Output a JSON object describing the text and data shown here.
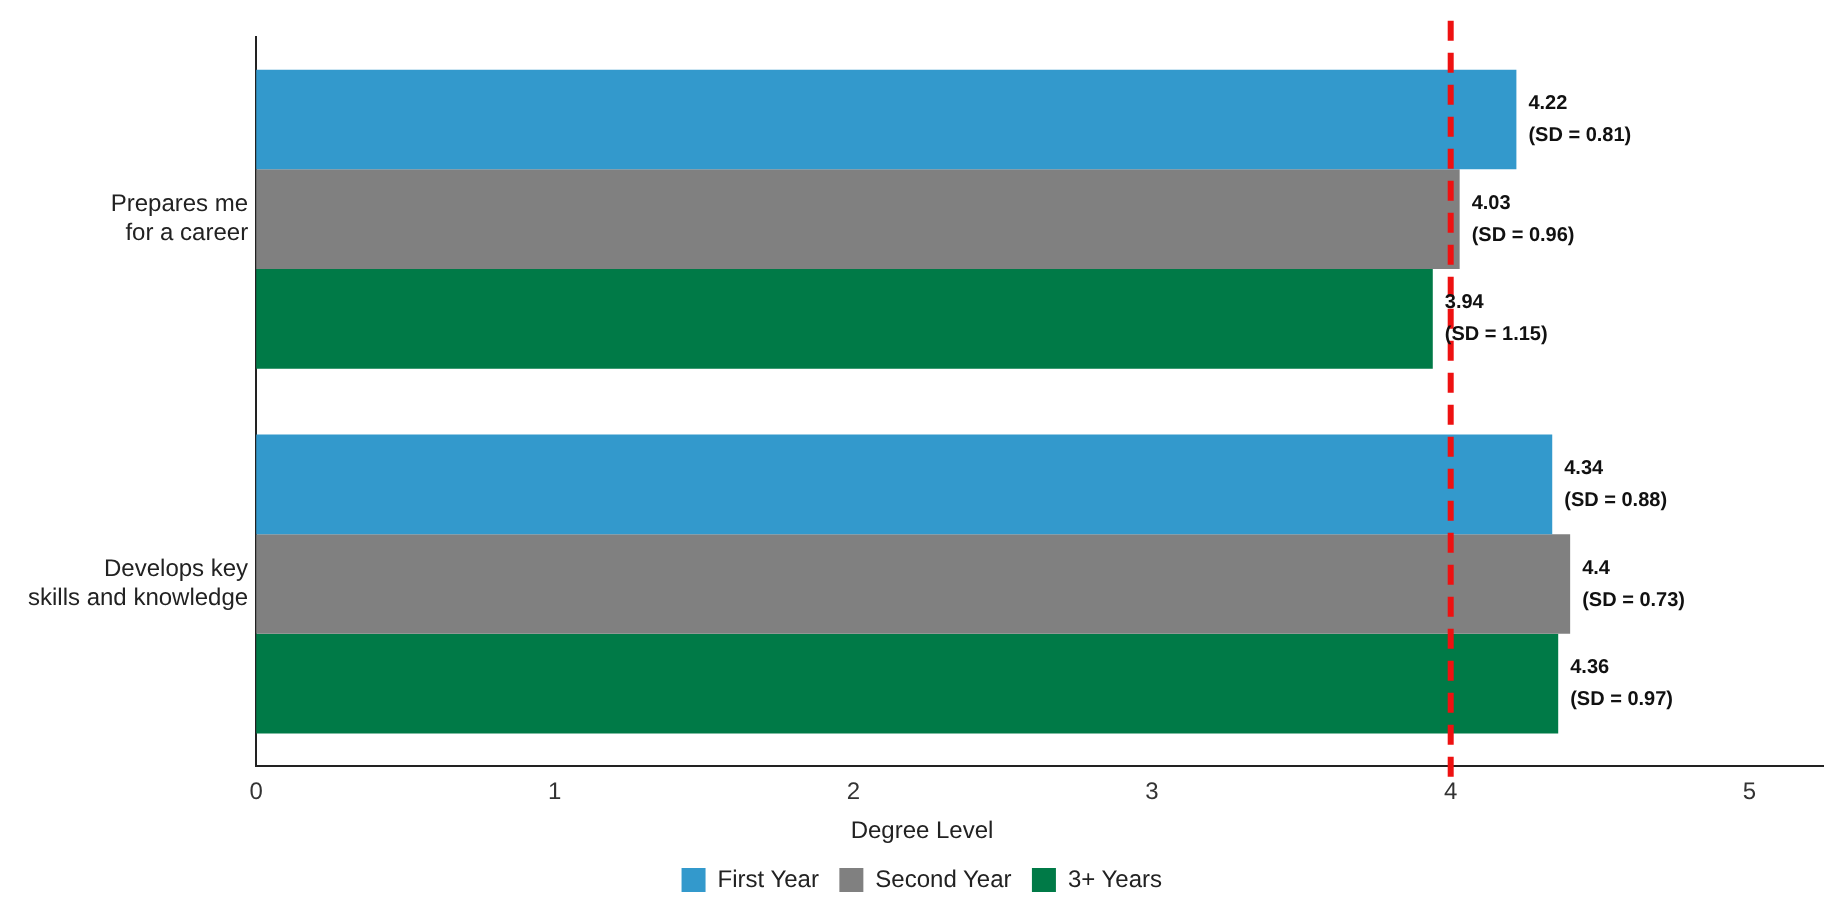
{
  "chart_data": {
    "type": "bar",
    "orientation": "horizontal",
    "categories": [
      "Prepares me\nfor a career",
      "Develops key\nskills and knowledge"
    ],
    "legend_title": "Degree Level",
    "legend": "bottom",
    "grid": false,
    "series": [
      {
        "name": "First Year",
        "color": "#3399cc",
        "values": [
          4.22,
          4.34
        ],
        "value_labels": [
          "4.22\n(SD = 0.81)",
          "4.34\n(SD = 0.88)"
        ]
      },
      {
        "name": "Second Year",
        "color": "#808080",
        "values": [
          4.03,
          4.4
        ],
        "value_labels": [
          "4.03\n(SD = 0.96)",
          "4.4\n(SD = 0.73)"
        ]
      },
      {
        "name": "3+ Years",
        "color": "#007a47",
        "values": [
          3.94,
          4.36
        ],
        "value_labels": [
          "3.94\n(SD = 1.15)",
          "4.36\n(SD = 0.97)"
        ]
      }
    ],
    "xlim": [
      0,
      5.25
    ],
    "xticks": [
      0,
      1,
      2,
      3,
      4,
      5
    ],
    "ref_lines": [
      {
        "axis": "x",
        "value": 4,
        "color": "#ee1111",
        "line_style": "dashed"
      }
    ]
  }
}
